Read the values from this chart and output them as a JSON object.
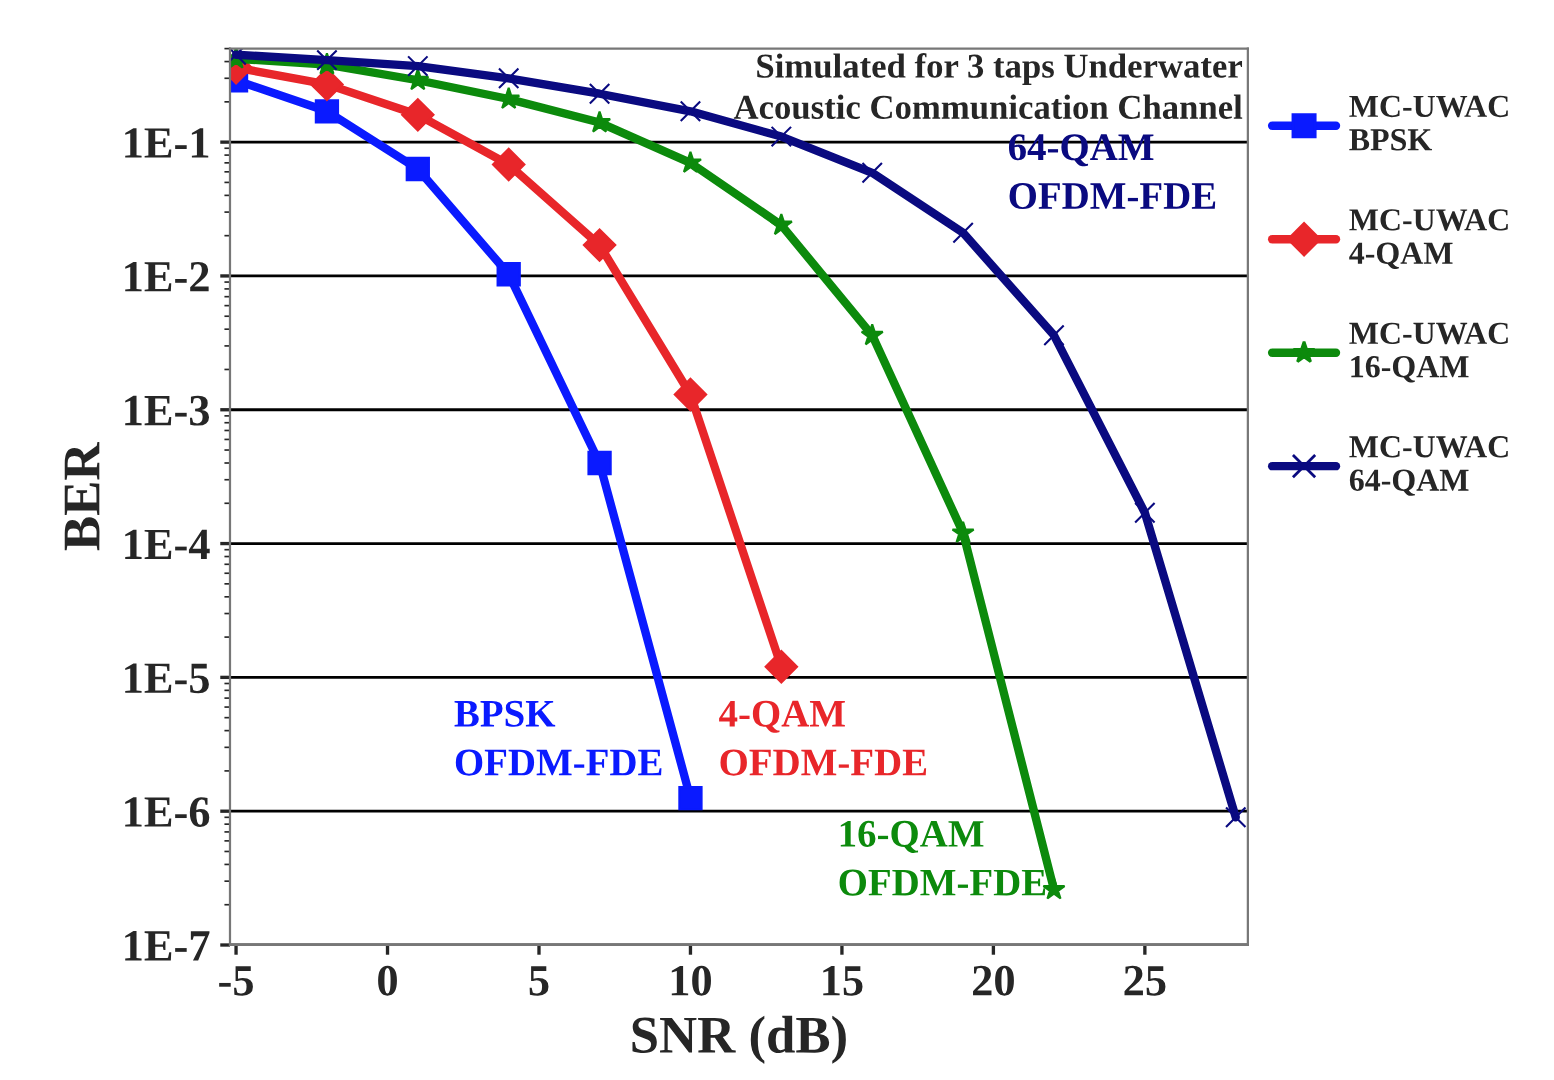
{
  "chart_data": {
    "type": "line",
    "xlabel": "SNR (dB)",
    "ylabel": "BER",
    "log": "y",
    "xlim": [
      -5.2,
      28.4
    ],
    "xticks": [
      -5,
      0,
      5,
      10,
      15,
      20,
      25
    ],
    "ylim": [
      1e-07,
      0.5
    ],
    "yticks": [
      {
        "value": 1e-07,
        "label": "1E-7"
      },
      {
        "value": 1e-06,
        "label": "1E-6"
      },
      {
        "value": 1e-05,
        "label": "1E-5"
      },
      {
        "value": 0.0001,
        "label": "1E-4"
      },
      {
        "value": 0.001,
        "label": "1E-3"
      },
      {
        "value": 0.01,
        "label": "1E-2"
      },
      {
        "value": 0.1,
        "label": "1E-1"
      }
    ],
    "grid": "y",
    "legend": "right",
    "line_style": "solid",
    "series": [
      {
        "name": "MC-UWAC\nBPSK",
        "color": "#0a1aff",
        "marker": "square",
        "x": [
          -5,
          -2,
          1,
          4,
          7,
          10
        ],
        "values": [
          0.29,
          0.17,
          0.063,
          0.0103,
          0.0004,
          1.25e-06
        ]
      },
      {
        "name": "MC-UWAC\n4-QAM",
        "color": "#e8262a",
        "marker": "diamond",
        "x": [
          -5,
          -2,
          1,
          4,
          7,
          10,
          13
        ],
        "values": [
          0.36,
          0.27,
          0.16,
          0.068,
          0.017,
          0.0013,
          1.2e-05
        ]
      },
      {
        "name": "MC-UWAC\n16-QAM",
        "color": "#0c8a0c",
        "marker": "star",
        "x": [
          -5,
          -2,
          1,
          4,
          7,
          10,
          13,
          16,
          19,
          22
        ],
        "values": [
          0.42,
          0.38,
          0.29,
          0.21,
          0.14,
          0.07,
          0.024,
          0.0036,
          0.00012,
          2.6e-07
        ]
      },
      {
        "name": "MC-UWAC\n64-QAM",
        "color": "#0a0a80",
        "marker": "cross",
        "x": [
          -5,
          -2,
          1,
          4,
          7,
          10,
          13,
          16,
          19,
          22,
          25,
          28
        ],
        "values": [
          0.45,
          0.41,
          0.37,
          0.3,
          0.23,
          0.17,
          0.11,
          0.059,
          0.021,
          0.0036,
          0.00017,
          9e-07
        ]
      }
    ],
    "annotations": [
      "Simulated for 3 taps Underwater\nAcoustic Communication Channel",
      "BPSK\nOFDM-FDE",
      "4-QAM\nOFDM-FDE",
      "16-QAM\nOFDM-FDE",
      "64-QAM\nOFDM-FDE"
    ]
  }
}
